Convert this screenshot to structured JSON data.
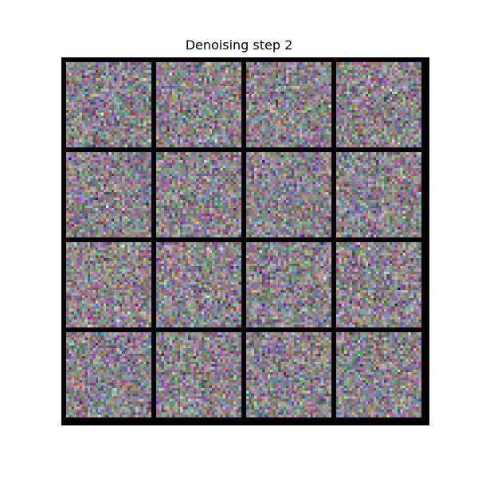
{
  "title": "Denoising step 2",
  "grid": {
    "rows": 4,
    "cols": 4,
    "tile_resolution": 32,
    "background_color": "#000000",
    "noise_mean_color": "#8a848a"
  },
  "tiles": [
    {
      "id": "sample-1"
    },
    {
      "id": "sample-2"
    },
    {
      "id": "sample-3"
    },
    {
      "id": "sample-4"
    },
    {
      "id": "sample-5"
    },
    {
      "id": "sample-6"
    },
    {
      "id": "sample-7"
    },
    {
      "id": "sample-8"
    },
    {
      "id": "sample-9"
    },
    {
      "id": "sample-10"
    },
    {
      "id": "sample-11"
    },
    {
      "id": "sample-12"
    },
    {
      "id": "sample-13"
    },
    {
      "id": "sample-14"
    },
    {
      "id": "sample-15"
    },
    {
      "id": "sample-16"
    }
  ]
}
